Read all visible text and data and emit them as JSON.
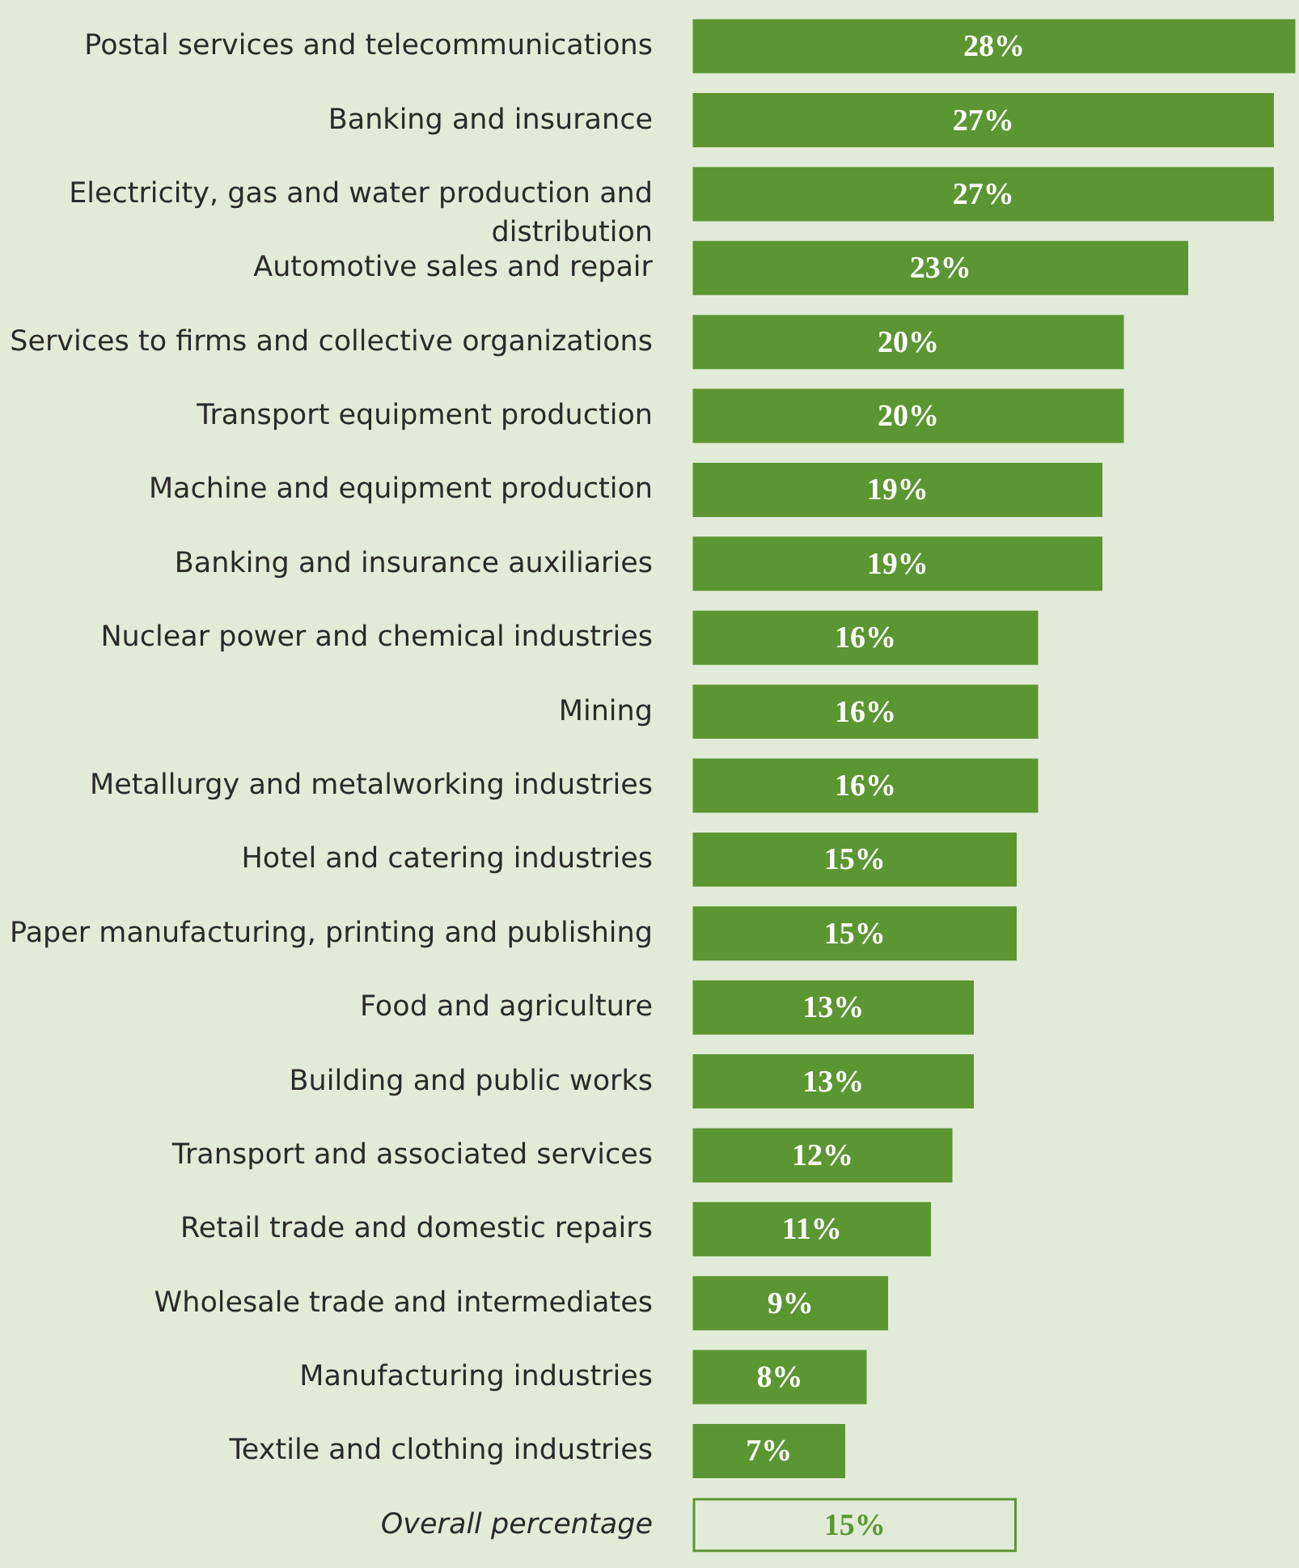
{
  "chart_data": {
    "type": "bar",
    "orientation": "horizontal",
    "categories": [
      "Postal services and telecommunications",
      "Banking and insurance",
      "Electricity, gas and water production and distribution",
      "Automotive sales and repair",
      "Services to firms and collective organizations",
      "Transport equipment production",
      "Machine and equipment production",
      "Banking and insurance auxiliaries",
      "Nuclear power and chemical industries",
      "Mining",
      "Metallurgy and metalworking industries",
      "Hotel and catering industries",
      "Paper manufacturing, printing and publishing",
      "Food and agriculture",
      "Building and public works",
      "Transport and associated services",
      "Retail trade and domestic repairs",
      "Wholesale trade and intermediates",
      "Manufacturing industries",
      "Textile and clothing industries",
      "Overall percentage"
    ],
    "values": [
      28,
      27,
      27,
      23,
      20,
      20,
      19,
      19,
      16,
      16,
      16,
      15,
      15,
      13,
      13,
      12,
      11,
      9,
      8,
      7,
      15
    ],
    "value_labels": [
      "28%",
      "27%",
      "27%",
      "23%",
      "20%",
      "20%",
      "19%",
      "19%",
      "16%",
      "16%",
      "16%",
      "15%",
      "15%",
      "13%",
      "13%",
      "12%",
      "11%",
      "9%",
      "8%",
      "7%",
      "15%"
    ],
    "colors": [
      "#5c9632",
      "#5c9632",
      "#5c9632",
      "#5c9632",
      "#5c9632",
      "#5c9632",
      "#5c9632",
      "#5c9632",
      "#5c9632",
      "#5c9632",
      "#5c9632",
      "#5c9632",
      "#5c9632",
      "#5c9632",
      "#5c9632",
      "#5c9632",
      "#5c9632",
      "#5c9632",
      "#5c9632",
      "#5c9632",
      "#e2ebd8"
    ],
    "grid": false
  }
}
